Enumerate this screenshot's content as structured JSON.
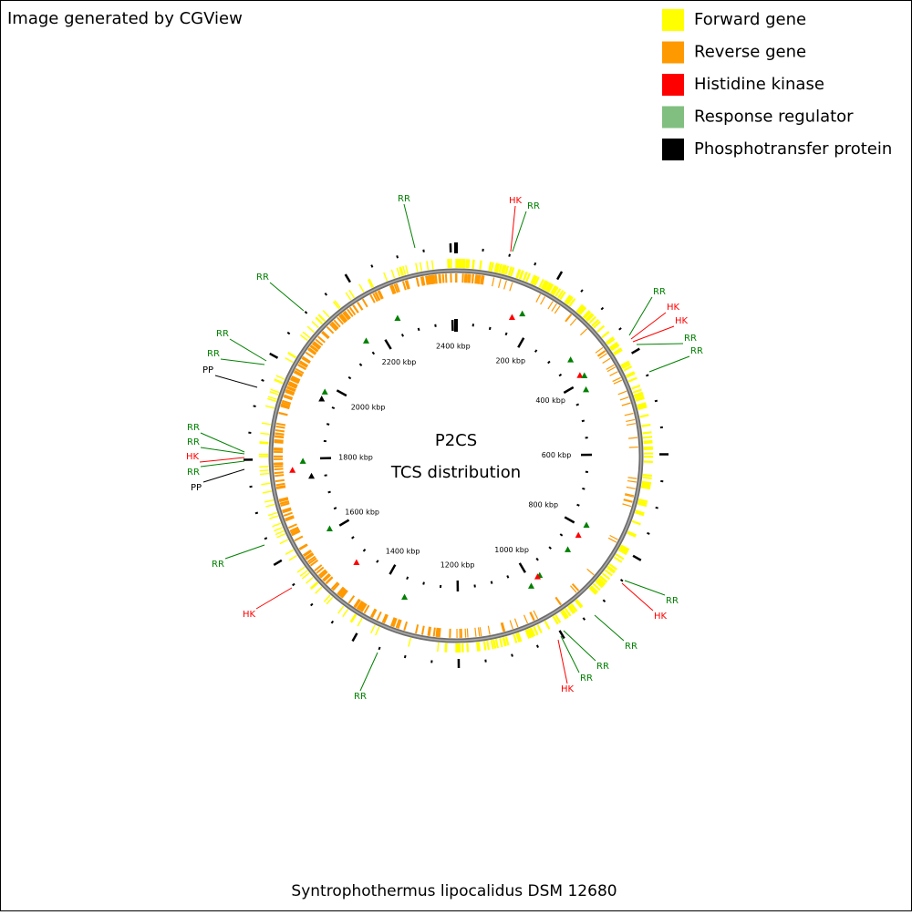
{
  "header": {
    "credit": "Image generated by CGView"
  },
  "legend": {
    "items": [
      {
        "label": "Forward gene",
        "color": "#ffff00"
      },
      {
        "label": "Reverse gene",
        "color": "#ff9900"
      },
      {
        "label": "Histidine kinase",
        "color": "#ff0000"
      },
      {
        "label": "Response regulator",
        "color": "#80bf80"
      },
      {
        "label": "Phosphotransfer protein",
        "color": "#000000"
      }
    ]
  },
  "map": {
    "title": "P2CS",
    "subtitle": "TCS distribution",
    "tick_labels": [
      "200 kbp",
      "400 kbp",
      "600 kbp",
      "800 kbp",
      "1000 kbp",
      "1200 kbp",
      "1400 kbp",
      "1600 kbp",
      "1800 kbp",
      "2000 kbp",
      "2200 kbp",
      "2400 kbp"
    ],
    "feature_labels": [
      {
        "label": "RR",
        "color": "#008000"
      },
      {
        "label": "HK",
        "color": "#ff0000"
      },
      {
        "label": "RR",
        "color": "#008000"
      },
      {
        "label": "RR",
        "color": "#008000"
      },
      {
        "label": "HK",
        "color": "#ff0000"
      },
      {
        "label": "HK",
        "color": "#ff0000"
      },
      {
        "label": "RR",
        "color": "#008000"
      },
      {
        "label": "RR",
        "color": "#008000"
      },
      {
        "label": "RR",
        "color": "#008000"
      },
      {
        "label": "HK",
        "color": "#ff0000"
      },
      {
        "label": "RR",
        "color": "#008000"
      },
      {
        "label": "RR",
        "color": "#008000"
      },
      {
        "label": "RR",
        "color": "#008000"
      },
      {
        "label": "HK",
        "color": "#ff0000"
      },
      {
        "label": "RR",
        "color": "#008000"
      },
      {
        "label": "RR",
        "color": "#008000"
      },
      {
        "label": "RR",
        "color": "#008000"
      },
      {
        "label": "RR",
        "color": "#008000"
      },
      {
        "label": "PP",
        "color": "#000000"
      },
      {
        "label": "RR",
        "color": "#008000"
      },
      {
        "label": "RR",
        "color": "#008000"
      },
      {
        "label": "HK",
        "color": "#ff0000"
      },
      {
        "label": "RR",
        "color": "#008000"
      },
      {
        "label": "PP",
        "color": "#000000"
      },
      {
        "label": "RR",
        "color": "#008000"
      },
      {
        "label": "HK",
        "color": "#ff0000"
      }
    ]
  },
  "footer": {
    "organism": "Syntrophothermus lipocalidus DSM 12680"
  }
}
